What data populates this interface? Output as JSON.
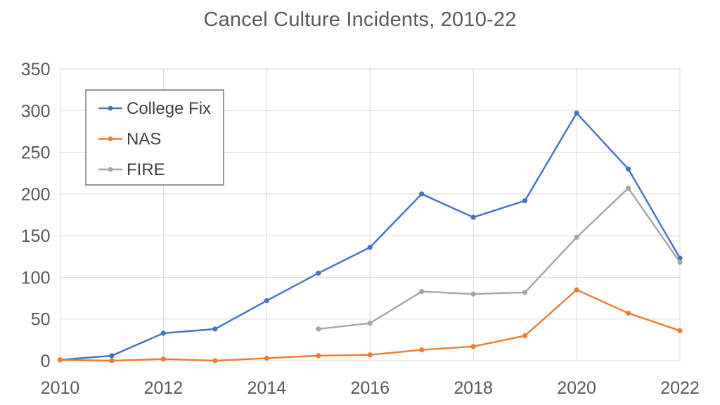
{
  "title": "Cancel Culture Incidents, 2010-22",
  "colors": {
    "college_fix": "#4472C4",
    "nas": "#ED7D31",
    "fire": "#A5A5A5",
    "gridline": "#D9D9D9",
    "tick_text": "#595959",
    "legend_text": "#404040",
    "legend_border": "#7F7F7F",
    "background": "#FFFFFF"
  },
  "chart_data": {
    "type": "line",
    "title": "Cancel Culture Incidents, 2010-22",
    "xlabel": "",
    "ylabel": "",
    "x": [
      2010,
      2011,
      2012,
      2013,
      2014,
      2015,
      2016,
      2017,
      2018,
      2019,
      2020,
      2021,
      2022
    ],
    "series": [
      {
        "name": "College Fix",
        "color": "#4472C4",
        "values": [
          1,
          6,
          33,
          38,
          72,
          105,
          136,
          200,
          172,
          192,
          297,
          230,
          123
        ]
      },
      {
        "name": "NAS",
        "color": "#ED7D31",
        "values": [
          1,
          0,
          2,
          0,
          3,
          6,
          7,
          13,
          17,
          30,
          85,
          57,
          36
        ]
      },
      {
        "name": "FIRE",
        "color": "#A5A5A5",
        "values": [
          null,
          null,
          null,
          null,
          null,
          38,
          45,
          83,
          80,
          82,
          148,
          207,
          118
        ]
      }
    ],
    "xlim": [
      2010,
      2022
    ],
    "ylim": [
      0,
      350
    ],
    "yticks": [
      0,
      50,
      100,
      150,
      200,
      250,
      300,
      350
    ],
    "xticks": [
      2010,
      2012,
      2014,
      2016,
      2018,
      2020,
      2022
    ],
    "grid": true,
    "legend_position": "top-left"
  }
}
